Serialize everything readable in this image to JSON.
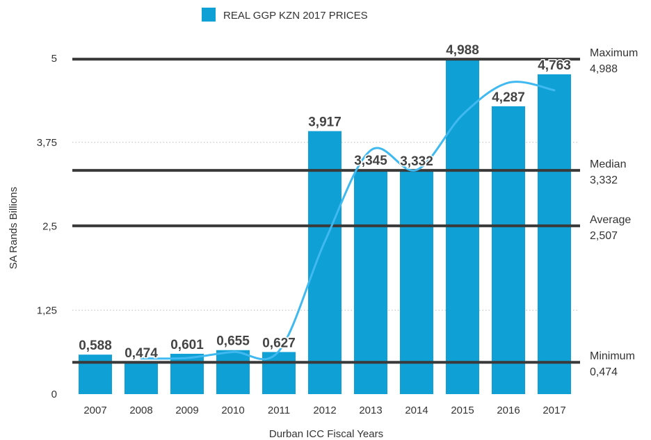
{
  "chart_data": {
    "type": "bar",
    "categories": [
      "2007",
      "2008",
      "2009",
      "2010",
      "2011",
      "2012",
      "2013",
      "2014",
      "2015",
      "2016",
      "2017"
    ],
    "series": [
      {
        "name": "REAL GGP KZN 2017 PRICES",
        "values": [
          0.588,
          0.474,
          0.601,
          0.655,
          0.627,
          3.917,
          3.345,
          3.332,
          4.988,
          4.287,
          4.763
        ],
        "labels": [
          "0,588",
          "0,474",
          "0,601",
          "0,655",
          "0,627",
          "3,917",
          "3,345",
          "3,332",
          "4,988",
          "4,287",
          "4,763"
        ],
        "color": "#0fa0d6"
      }
    ],
    "trend_line": {
      "color": "#3fb9ef",
      "x": [
        "2008",
        "2009",
        "2010",
        "2011",
        "2012",
        "2013",
        "2014",
        "2015",
        "2016",
        "2017"
      ],
      "values": [
        0.531,
        0.538,
        0.628,
        0.641,
        2.272,
        3.631,
        3.339,
        4.16,
        4.638,
        4.525
      ]
    },
    "reference_lines": [
      {
        "name": "Maximum",
        "value": 4.988,
        "label": "4,988"
      },
      {
        "name": "Median",
        "value": 3.332,
        "label": "3,332"
      },
      {
        "name": "Average",
        "value": 2.507,
        "label": "2,507"
      },
      {
        "name": "Minimum",
        "value": 0.474,
        "label": "0,474"
      }
    ],
    "y_ticks": [
      {
        "value": 0,
        "label": "0"
      },
      {
        "value": 1.25,
        "label": "1,25"
      },
      {
        "value": 2.5,
        "label": "2,5"
      },
      {
        "value": 3.75,
        "label": "3,75"
      },
      {
        "value": 5,
        "label": "5"
      }
    ],
    "xlabel": "Durban ICC Fiscal Years",
    "ylabel": "SA Rands Billions",
    "ylim": [
      0,
      5
    ],
    "grid": true,
    "legend_position": "top"
  }
}
